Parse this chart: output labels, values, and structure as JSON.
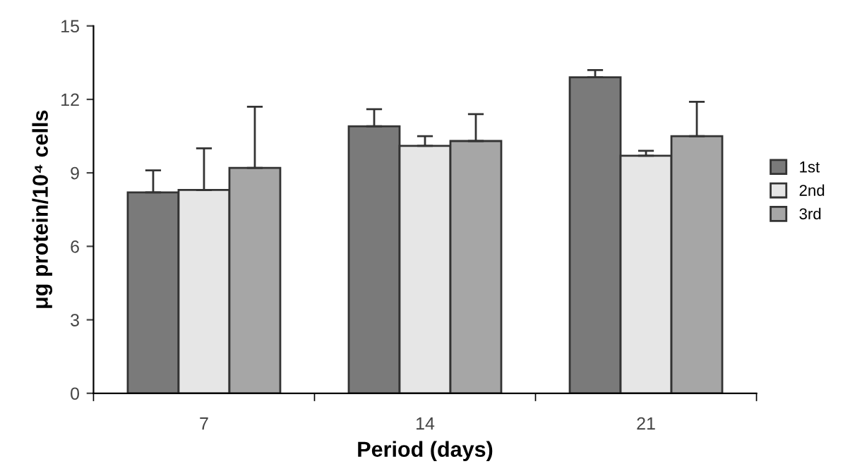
{
  "chart_data": {
    "type": "bar",
    "xlabel": "Period (days)",
    "ylabel": "μg protein/10⁴ cells",
    "categories": [
      "7",
      "14",
      "21"
    ],
    "series": [
      {
        "name": "1st",
        "color": "#7a7a7a",
        "values": [
          8.2,
          10.9,
          12.9
        ],
        "errors": [
          0.9,
          0.7,
          0.3
        ]
      },
      {
        "name": "2nd",
        "color": "#e6e6e6",
        "values": [
          8.3,
          10.1,
          9.7
        ],
        "errors": [
          1.7,
          0.4,
          0.2
        ]
      },
      {
        "name": "3rd",
        "color": "#a6a6a6",
        "values": [
          9.2,
          10.3,
          10.5
        ],
        "errors": [
          2.5,
          1.1,
          1.4
        ]
      }
    ],
    "ylim": [
      0,
      15
    ],
    "yticks": [
      0,
      3,
      6,
      9,
      12,
      15
    ],
    "grid": false,
    "legend": "right"
  }
}
